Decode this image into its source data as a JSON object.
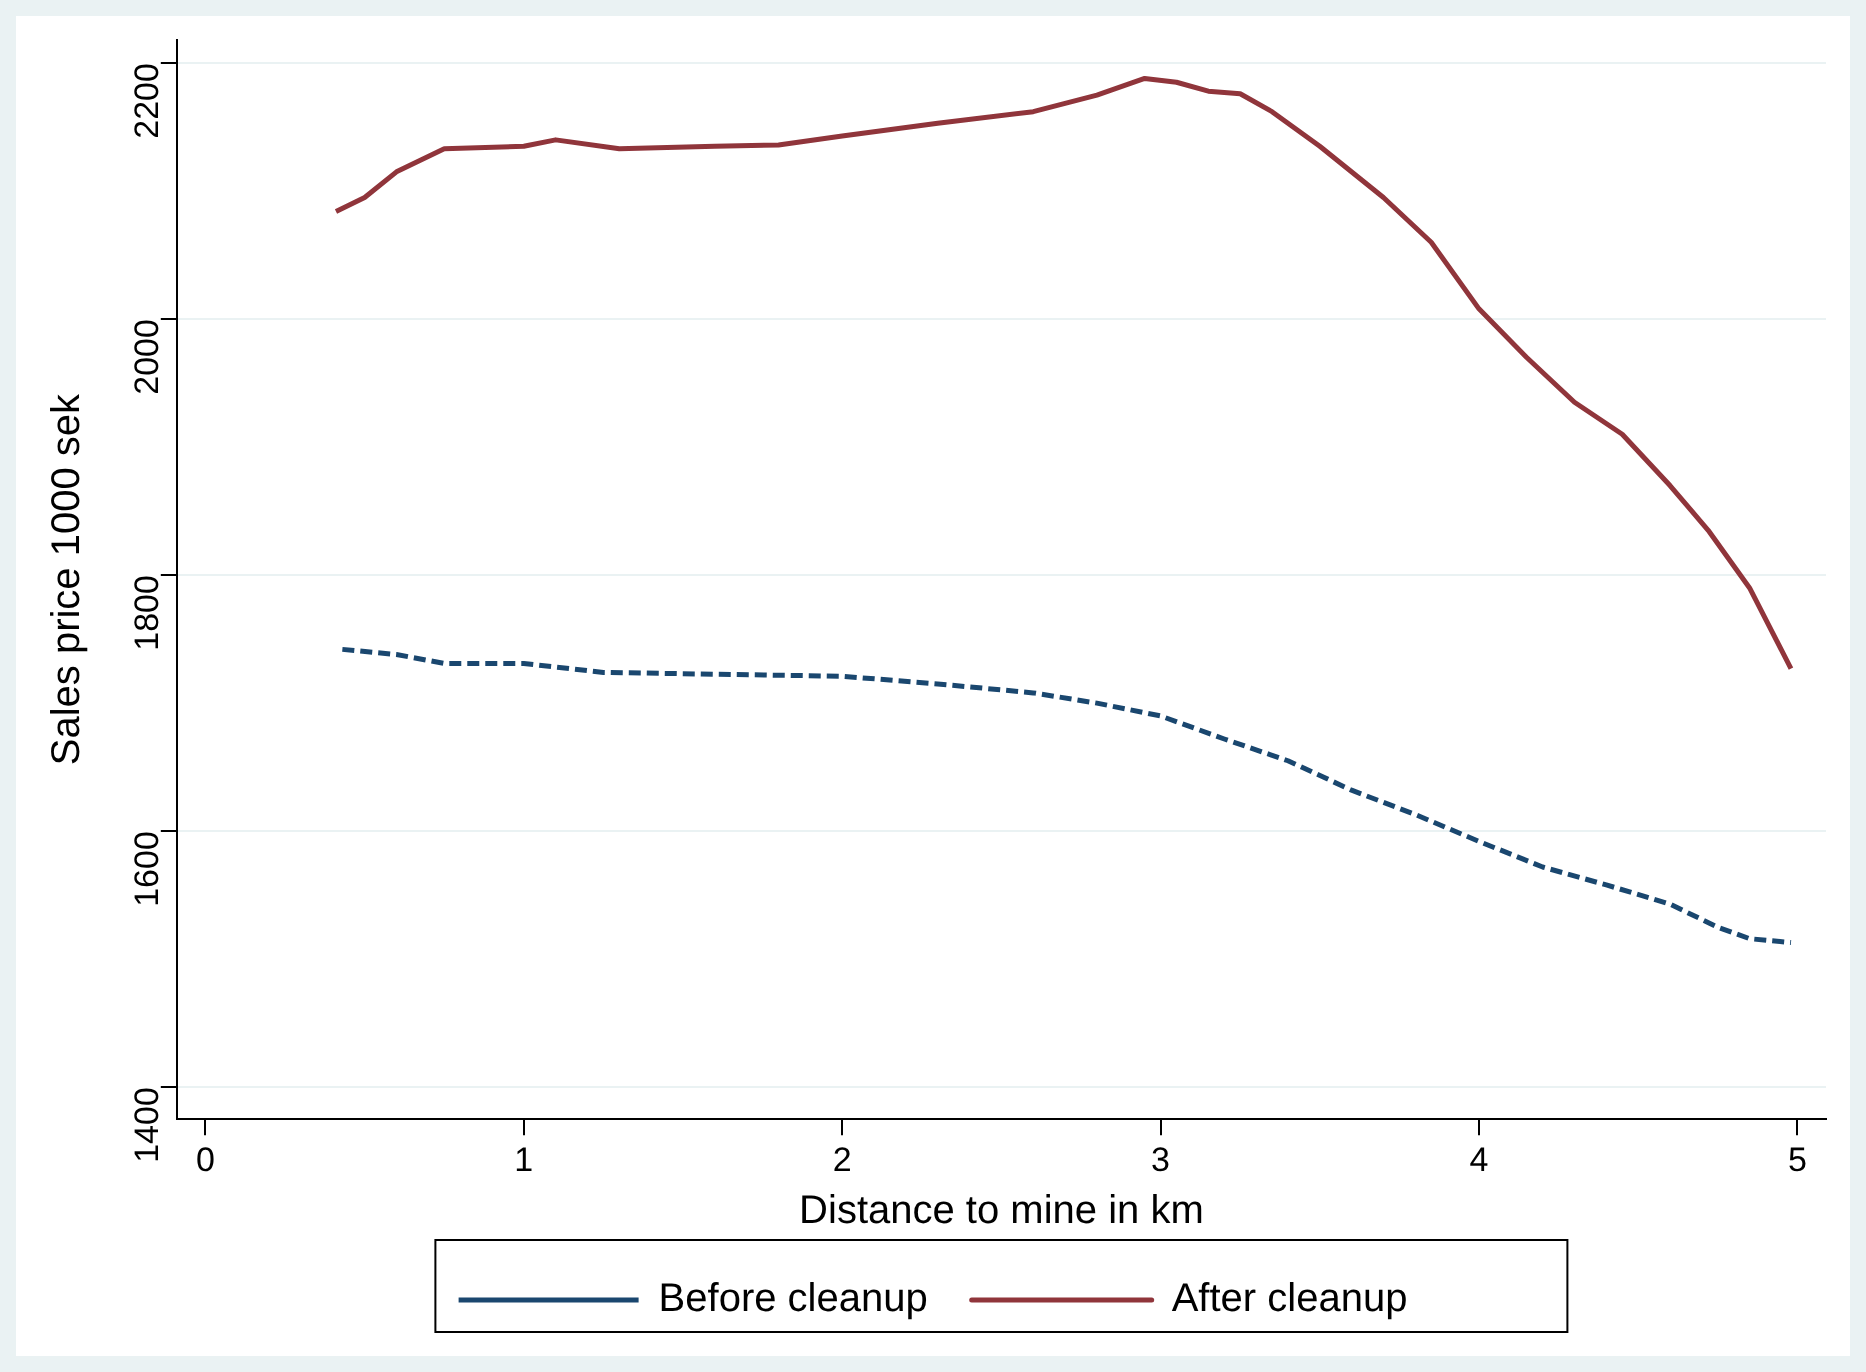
{
  "chart_data": {
    "type": "line",
    "xlabel": "Distance to mine in km",
    "ylabel": "Sales price 1000 sek",
    "xlim": [
      -0.09,
      5.09
    ],
    "xticks": [
      0,
      1,
      2,
      3,
      4,
      5
    ],
    "ylim": [
      1375,
      2218
    ],
    "yticks": [
      1400,
      1600,
      1800,
      2000,
      2200
    ],
    "grid": "y",
    "legend": "bottom",
    "marker": "none",
    "series": [
      {
        "name": "Before cleanup",
        "color": "#1a476f",
        "line_style": "dashed",
        "x": [
          0.43,
          0.6,
          0.75,
          1.0,
          1.25,
          1.5,
          2.0,
          2.3,
          2.6,
          2.8,
          3.0,
          3.2,
          3.4,
          3.6,
          3.8,
          4.0,
          4.2,
          4.4,
          4.6,
          4.75,
          4.85,
          4.98
        ],
        "values": [
          1742,
          1738,
          1731,
          1731,
          1724,
          1723,
          1721,
          1715,
          1708,
          1700,
          1690,
          1672,
          1655,
          1632,
          1613,
          1592,
          1572,
          1558,
          1543,
          1525,
          1516,
          1513
        ]
      },
      {
        "name": "After cleanup",
        "color": "#90353b",
        "line_style": "solid",
        "x": [
          0.41,
          0.5,
          0.6,
          0.75,
          1.0,
          1.1,
          1.3,
          1.6,
          1.8,
          2.0,
          2.3,
          2.6,
          2.8,
          2.95,
          3.05,
          3.15,
          3.25,
          3.35,
          3.5,
          3.7,
          3.85,
          4.0,
          4.15,
          4.3,
          4.45,
          4.6,
          4.72,
          4.85,
          4.98
        ],
        "values": [
          2084,
          2095,
          2115,
          2133,
          2135,
          2140,
          2133,
          2135,
          2136,
          2143,
          2153,
          2162,
          2175,
          2188,
          2185,
          2178,
          2176,
          2162,
          2135,
          2095,
          2060,
          2008,
          1970,
          1935,
          1910,
          1870,
          1835,
          1790,
          1727
        ]
      }
    ]
  }
}
